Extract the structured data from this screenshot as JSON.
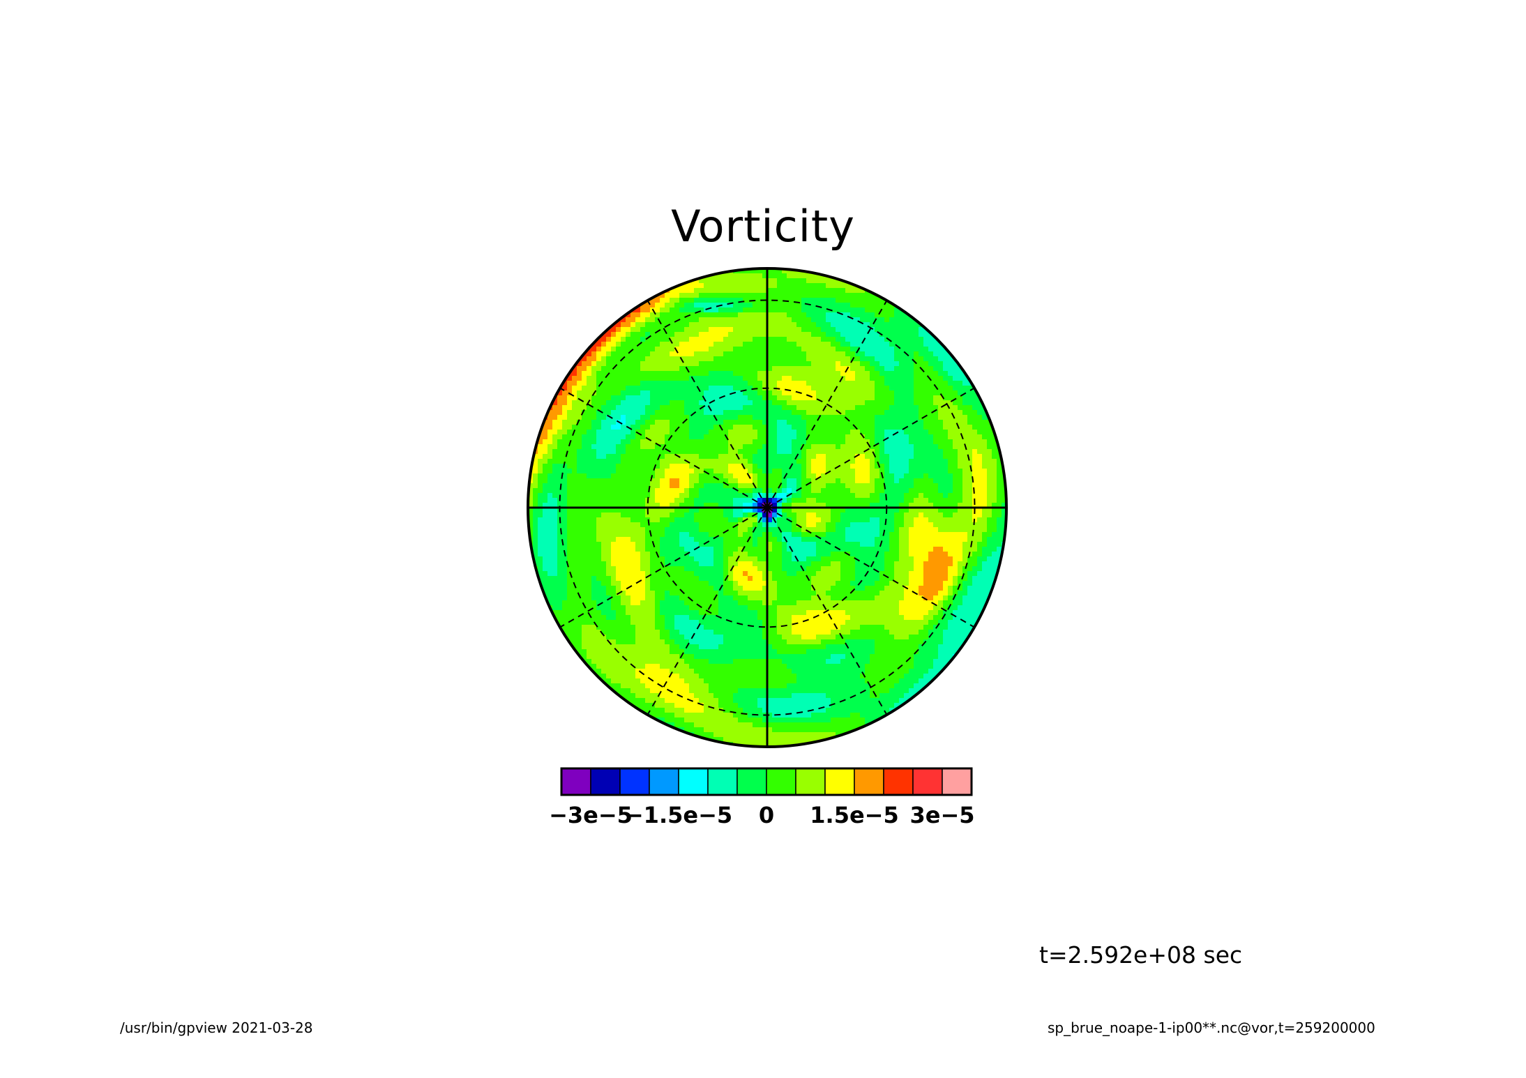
{
  "chart_data": {
    "type": "heatmap",
    "projection": "polar-stereographic",
    "title": "Vorticity",
    "variable": "vor",
    "grid": true,
    "colorbar": {
      "placement": "bottom",
      "levels": [
        -3.5e-05,
        -3e-05,
        -2.5e-05,
        -2e-05,
        -1.5e-05,
        -1e-05,
        -5e-06,
        0,
        5e-06,
        1e-05,
        1.5e-05,
        2e-05,
        2.5e-05,
        3e-05,
        3.5e-05
      ],
      "colors": [
        "#7f00bf",
        "#0000b4",
        "#0033ff",
        "#0099ff",
        "#00ffff",
        "#00ffb4",
        "#00ff4c",
        "#33ff00",
        "#99ff00",
        "#ffff00",
        "#ff9900",
        "#ff3300",
        "#ff3333",
        "#ffa0a0"
      ],
      "tick_labels": [
        {
          "value": -3e-05,
          "label": "−3e−5"
        },
        {
          "value": -1.5e-05,
          "label": "−1.5e−5"
        },
        {
          "value": 0,
          "label": "0"
        },
        {
          "value": 1.5e-05,
          "label": "1.5e−5"
        },
        {
          "value": 3e-05,
          "label": "3e−5"
        }
      ]
    },
    "annotation": "t=2.592e+08 sec"
  },
  "footer": {
    "left": "/usr/bin/gpview  2021-03-28",
    "right": "sp_brue_noape-1-ip00**.nc@vor,t=259200000"
  }
}
